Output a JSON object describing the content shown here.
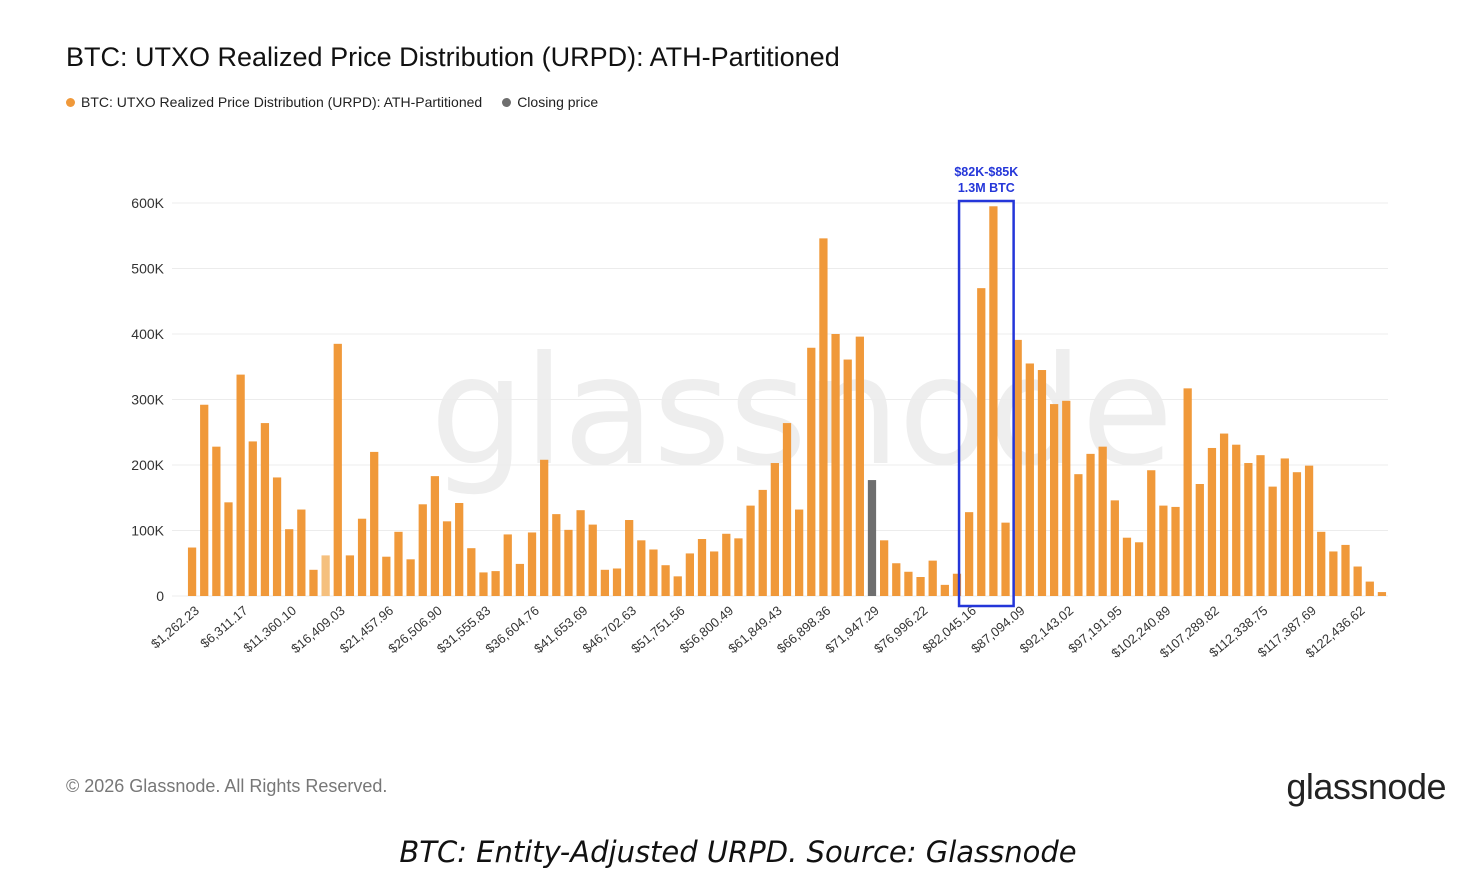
{
  "header": {
    "title": "BTC: UTXO Realized Price Distribution (URPD): ATH-Partitioned"
  },
  "legend": {
    "series_label": "BTC: UTXO Realized Price Distribution (URPD): ATH-Partitioned",
    "closing_label": "Closing price"
  },
  "colors": {
    "bar": "#f0993a",
    "bar_light": "#f5c07e",
    "closing": "#6e6e6e",
    "highlight": "#2436d9",
    "grid": "#ececec"
  },
  "watermark": "glassnode",
  "footer": {
    "copyright": "© 2026 Glassnode. All Rights Reserved.",
    "logo": "glassnode"
  },
  "caption": "BTC: Entity-Adjusted URPD. Source: Glassnode",
  "chart_data": {
    "type": "bar",
    "title": "BTC: UTXO Realized Price Distribution (URPD): ATH-Partitioned",
    "xlabel": "",
    "ylabel": "",
    "ylim": [
      0,
      600000
    ],
    "yticks": [
      0,
      100000,
      200000,
      300000,
      400000,
      500000,
      600000
    ],
    "ytick_labels": [
      "0",
      "100K",
      "200K",
      "300K",
      "400K",
      "500K",
      "600K"
    ],
    "xtick_labels": [
      "$1,262.23",
      "$6,311.17",
      "$11,360.10",
      "$16,409.03",
      "$21,457.96",
      "$26,506.90",
      "$31,555.83",
      "$36,604.76",
      "$41,653.69",
      "$46,702.63",
      "$51,751.56",
      "$56,800.49",
      "$61,849.43",
      "$66,898.36",
      "$71,947.29",
      "$76,996.22",
      "$82,045.16",
      "$87,094.09",
      "$92,143.02",
      "$97,191.95",
      "$102,240.89",
      "$107,289.82",
      "$112,338.75",
      "$117,387.69",
      "$122,436.62"
    ],
    "xtick_every": 4,
    "series": [
      {
        "name": "BTC: UTXO Realized Price Distribution (URPD): ATH-Partitioned",
        "values": [
          74000,
          292000,
          228000,
          143000,
          338000,
          236000,
          264000,
          181000,
          102000,
          132000,
          40000,
          62000,
          385000,
          62000,
          118000,
          220000,
          60000,
          98000,
          56000,
          140000,
          183000,
          114000,
          142000,
          73000,
          36000,
          38000,
          94000,
          49000,
          97000,
          208000,
          125000,
          101000,
          131000,
          109000,
          40000,
          42000,
          116000,
          85000,
          71000,
          47000,
          30000,
          65000,
          87000,
          68000,
          95000,
          88000,
          138000,
          162000,
          203000,
          264000,
          132000,
          379000,
          546000,
          400000,
          361000,
          396000,
          177000,
          85000,
          50000,
          37000,
          29000,
          54000,
          17000,
          34000,
          128000,
          470000,
          595000,
          112000,
          391000,
          355000,
          345000,
          293000,
          298000,
          186000,
          217000,
          228000,
          146000,
          89000,
          82000,
          192000,
          138000,
          136000,
          317000,
          171000,
          226000,
          248000,
          231000,
          203000,
          215000,
          167000,
          210000,
          189000,
          199000,
          98000,
          68000,
          78000,
          45000,
          22000,
          6000
        ]
      }
    ],
    "closing_price_index": 56,
    "light_bar_index": 11,
    "annotation": {
      "line1": "$82K-$85K",
      "line2": "1.3M BTC",
      "start_index": 64,
      "end_index": 67
    }
  }
}
